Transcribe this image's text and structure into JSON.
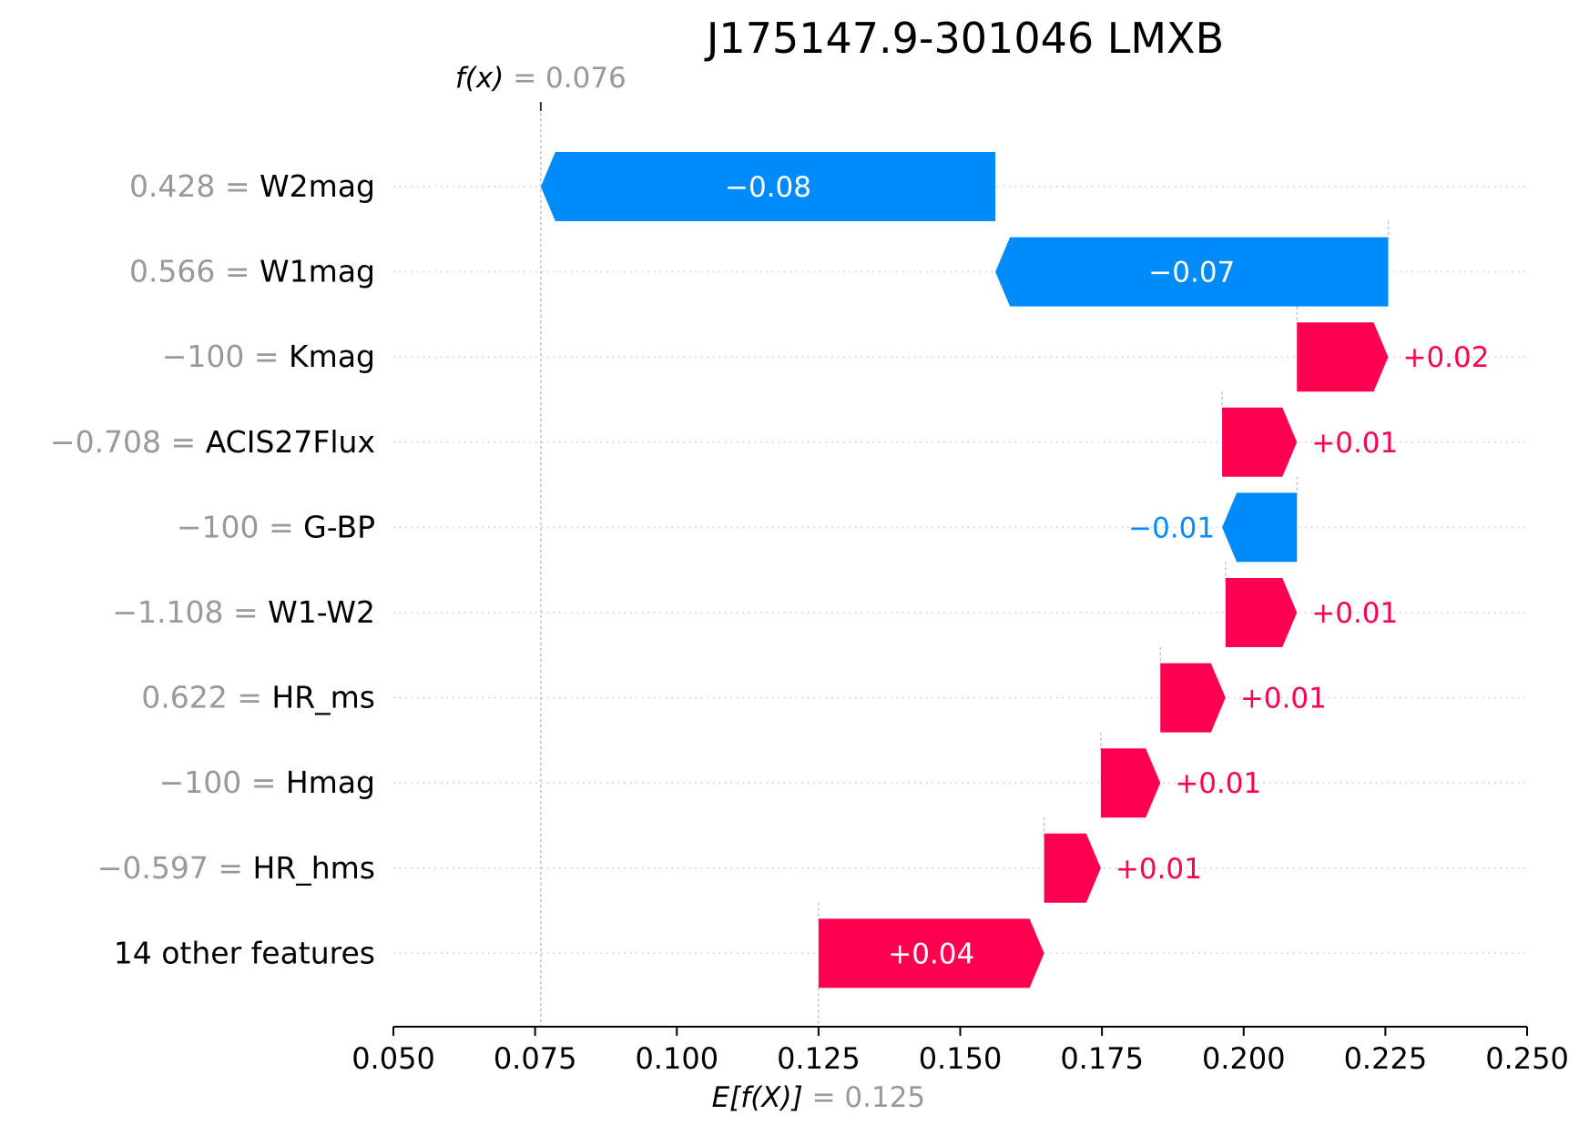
{
  "chart_data": {
    "type": "waterfall",
    "title": "J175147.9-301046 LMXB",
    "fx_label": "f(x)",
    "fx_value": "0.076",
    "fx": 0.076,
    "base_label": "E[f(X)]",
    "base_value_text": "0.125",
    "base_value": 0.125,
    "xlim": [
      0.05,
      0.25
    ],
    "xticks": [
      "0.050",
      "0.075",
      "0.100",
      "0.125",
      "0.150",
      "0.175",
      "0.200",
      "0.225",
      "0.250"
    ],
    "positive_color": "#ff0051",
    "negative_color": "#008bfb",
    "feature_value_color": "#999999",
    "features": [
      {
        "value_text": "0.428",
        "name": "W2mag",
        "start": 0.1562,
        "end": 0.076,
        "label": "−0.08"
      },
      {
        "value_text": "0.566",
        "name": "W1mag",
        "start": 0.2255,
        "end": 0.1562,
        "label": "−0.07"
      },
      {
        "value_text": "−100",
        "name": "Kmag",
        "start": 0.2094,
        "end": 0.2255,
        "label": "+0.02"
      },
      {
        "value_text": "−0.708",
        "name": "ACIS27Flux",
        "start": 0.1962,
        "end": 0.2094,
        "label": "+0.01"
      },
      {
        "value_text": "−100",
        "name": "G-BP",
        "start": 0.2094,
        "end": 0.1962,
        "label": "−0.01"
      },
      {
        "value_text": "−1.108",
        "name": "W1-W2",
        "start": 0.1968,
        "end": 0.2094,
        "label": "+0.01"
      },
      {
        "value_text": "0.622",
        "name": "HR_ms",
        "start": 0.1853,
        "end": 0.1968,
        "label": "+0.01"
      },
      {
        "value_text": "−100",
        "name": "Hmag",
        "start": 0.1748,
        "end": 0.1853,
        "label": "+0.01"
      },
      {
        "value_text": "−0.597",
        "name": "HR_hms",
        "start": 0.1648,
        "end": 0.1748,
        "label": "+0.01"
      },
      {
        "value_text": "",
        "name": "14 other features",
        "start": 0.125,
        "end": 0.1648,
        "label": "+0.04"
      }
    ]
  }
}
